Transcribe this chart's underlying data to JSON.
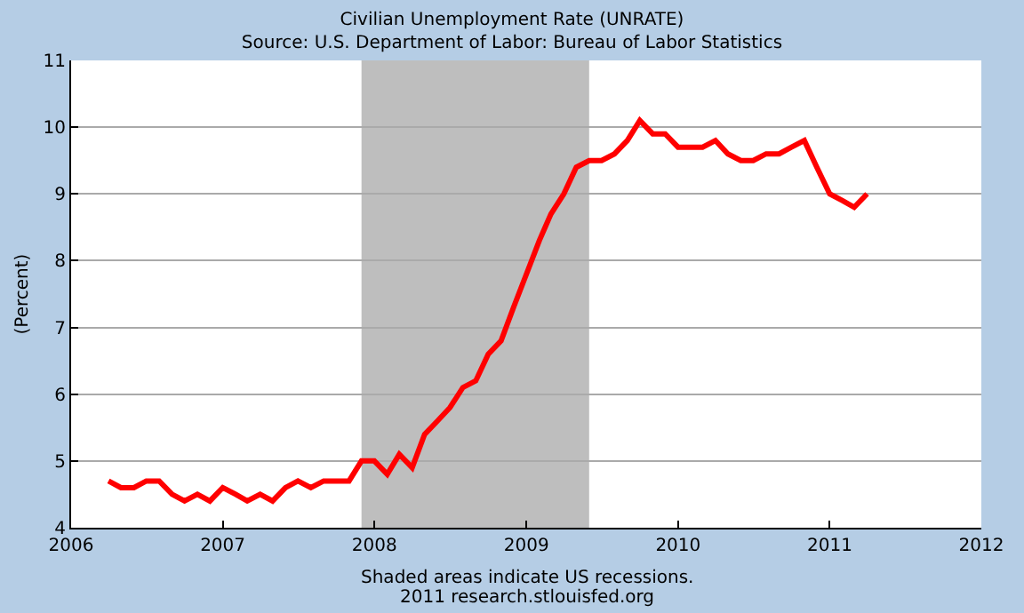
{
  "chart_data": {
    "type": "line",
    "title": "Civilian Unemployment Rate (UNRATE)",
    "subtitle": "Source: U.S. Department of Labor: Bureau of Labor Statistics",
    "ylabel": "(Percent)",
    "x": [
      "2006-04",
      "2006-05",
      "2006-06",
      "2006-07",
      "2006-08",
      "2006-09",
      "2006-10",
      "2006-11",
      "2006-12",
      "2007-01",
      "2007-02",
      "2007-03",
      "2007-04",
      "2007-05",
      "2007-06",
      "2007-07",
      "2007-08",
      "2007-09",
      "2007-10",
      "2007-11",
      "2007-12",
      "2008-01",
      "2008-02",
      "2008-03",
      "2008-04",
      "2008-05",
      "2008-06",
      "2008-07",
      "2008-08",
      "2008-09",
      "2008-10",
      "2008-11",
      "2008-12",
      "2009-01",
      "2009-02",
      "2009-03",
      "2009-04",
      "2009-05",
      "2009-06",
      "2009-07",
      "2009-08",
      "2009-09",
      "2009-10",
      "2009-11",
      "2009-12",
      "2010-01",
      "2010-02",
      "2010-03",
      "2010-04",
      "2010-05",
      "2010-06",
      "2010-07",
      "2010-08",
      "2010-09",
      "2010-10",
      "2010-11",
      "2010-12",
      "2011-01",
      "2011-02",
      "2011-03",
      "2011-04"
    ],
    "series": [
      {
        "color": "#ff0000",
        "values": [
          4.7,
          4.6,
          4.6,
          4.7,
          4.7,
          4.5,
          4.4,
          4.5,
          4.4,
          4.6,
          4.5,
          4.4,
          4.5,
          4.4,
          4.6,
          4.7,
          4.6,
          4.7,
          4.7,
          4.7,
          5.0,
          5.0,
          4.8,
          5.1,
          4.9,
          5.4,
          5.6,
          5.8,
          6.1,
          6.2,
          6.6,
          6.8,
          7.3,
          7.8,
          8.3,
          8.7,
          9.0,
          9.4,
          9.5,
          9.5,
          9.6,
          9.8,
          10.1,
          9.9,
          9.9,
          9.7,
          9.7,
          9.7,
          9.8,
          9.6,
          9.5,
          9.5,
          9.6,
          9.6,
          9.7,
          9.8,
          9.4,
          9.0,
          8.9,
          8.8,
          9.0
        ]
      }
    ],
    "xlim": [
      "2006-01",
      "2012-01"
    ],
    "xticks": [
      "2006",
      "2007",
      "2008",
      "2009",
      "2010",
      "2011",
      "2012"
    ],
    "ylim": [
      4,
      11
    ],
    "yticks": [
      4,
      5,
      6,
      7,
      8,
      9,
      10,
      11
    ],
    "grid": "y",
    "line_style": "solid",
    "bands": [
      {
        "axis": "x",
        "from": "2007-12",
        "to": "2009-06",
        "color": "#bebebe"
      }
    ],
    "annotations": [
      "Shaded areas indicate US recessions.",
      "2011 research.stlouisfed.org"
    ]
  }
}
